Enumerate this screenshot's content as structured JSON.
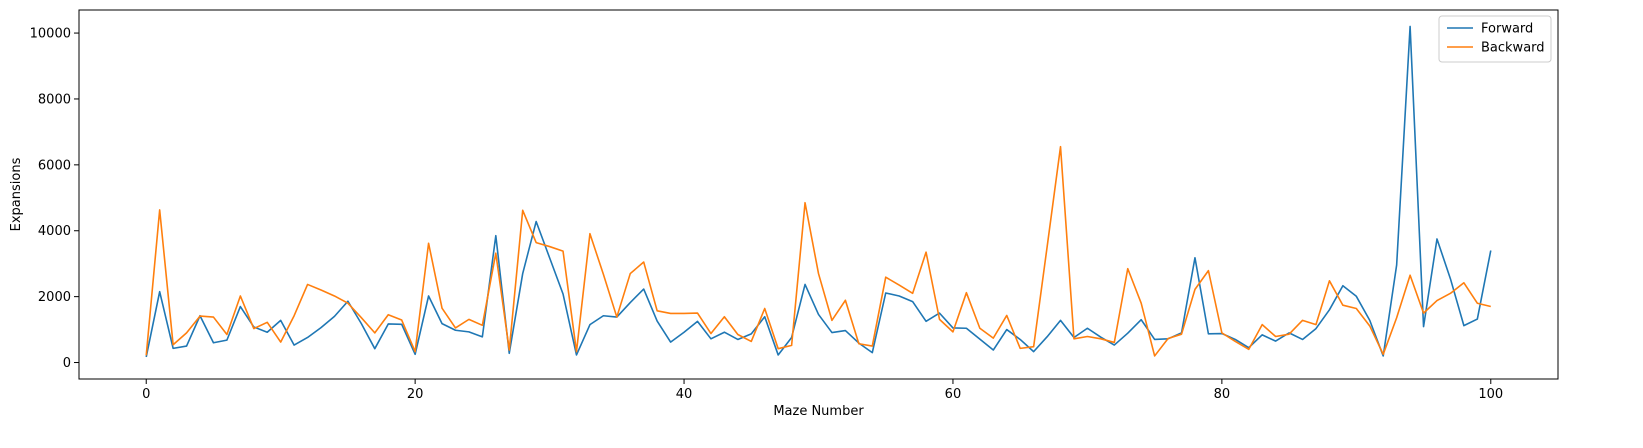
{
  "chart_data": {
    "type": "line",
    "title": "",
    "xlabel": "Maze Number",
    "ylabel": "Expansions",
    "xlim": [
      -5,
      105
    ],
    "ylim": [
      -500,
      10700
    ],
    "x_ticks": [
      0,
      20,
      40,
      60,
      80,
      100
    ],
    "y_ticks": [
      0,
      2000,
      4000,
      6000,
      8000,
      10000
    ],
    "grid": false,
    "legend_position": "top-right",
    "x": [
      0,
      1,
      2,
      3,
      4,
      5,
      6,
      7,
      8,
      9,
      10,
      11,
      12,
      13,
      14,
      15,
      16,
      17,
      18,
      19,
      20,
      21,
      22,
      23,
      24,
      25,
      26,
      27,
      28,
      29,
      30,
      31,
      32,
      33,
      34,
      35,
      36,
      37,
      38,
      39,
      40,
      41,
      42,
      43,
      44,
      45,
      46,
      47,
      48,
      49,
      50,
      51,
      52,
      53,
      54,
      55,
      56,
      57,
      58,
      59,
      60,
      61,
      62,
      63,
      64,
      65,
      66,
      67,
      68,
      69,
      70,
      71,
      72,
      73,
      74,
      75,
      76,
      77,
      78,
      79,
      80,
      81,
      82,
      83,
      84,
      85,
      86,
      87,
      88,
      89,
      90,
      91,
      92,
      93,
      94,
      95,
      96,
      97,
      98,
      99,
      100
    ],
    "series": [
      {
        "name": "Forward",
        "color": "#1f77b4",
        "values": [
          170,
          2150,
          430,
          500,
          1420,
          600,
          680,
          1700,
          1080,
          920,
          1280,
          530,
          760,
          1060,
          1400,
          1860,
          1180,
          420,
          1170,
          1160,
          250,
          2020,
          1180,
          980,
          930,
          780,
          3850,
          280,
          2700,
          4280,
          3180,
          2080,
          230,
          1150,
          1420,
          1380,
          1820,
          2230,
          1260,
          620,
          920,
          1250,
          720,
          920,
          700,
          870,
          1390,
          230,
          760,
          2370,
          1460,
          910,
          970,
          590,
          300,
          2110,
          2020,
          1850,
          1250,
          1500,
          1050,
          1040,
          710,
          380,
          1000,
          700,
          330,
          780,
          1280,
          760,
          1040,
          770,
          530,
          890,
          1300,
          700,
          720,
          900,
          3180,
          870,
          880,
          700,
          450,
          840,
          650,
          900,
          700,
          1030,
          1600,
          2330,
          2010,
          1280,
          200,
          2960,
          10200,
          1090,
          3750,
          2540,
          1120,
          1320,
          3400
        ]
      },
      {
        "name": "Backward",
        "color": "#ff7f0e",
        "values": [
          220,
          4630,
          540,
          900,
          1410,
          1380,
          850,
          2020,
          1030,
          1220,
          620,
          1420,
          2370,
          2200,
          2020,
          1800,
          1360,
          900,
          1450,
          1290,
          330,
          3620,
          1650,
          1050,
          1310,
          1130,
          3320,
          380,
          4620,
          3640,
          3520,
          3380,
          330,
          3910,
          2680,
          1380,
          2700,
          3050,
          1570,
          1490,
          1490,
          1500,
          880,
          1390,
          850,
          640,
          1640,
          420,
          520,
          4850,
          2700,
          1280,
          1890,
          570,
          500,
          2590,
          2350,
          2100,
          3350,
          1310,
          930,
          2120,
          1040,
          740,
          1430,
          430,
          480,
          3500,
          6550,
          720,
          790,
          720,
          610,
          2850,
          1800,
          200,
          730,
          860,
          2220,
          2790,
          900,
          640,
          400,
          1150,
          790,
          860,
          1280,
          1150,
          2480,
          1740,
          1640,
          1110,
          250,
          1360,
          2650,
          1500,
          1880,
          2100,
          2420,
          1800,
          1700
        ]
      }
    ]
  }
}
